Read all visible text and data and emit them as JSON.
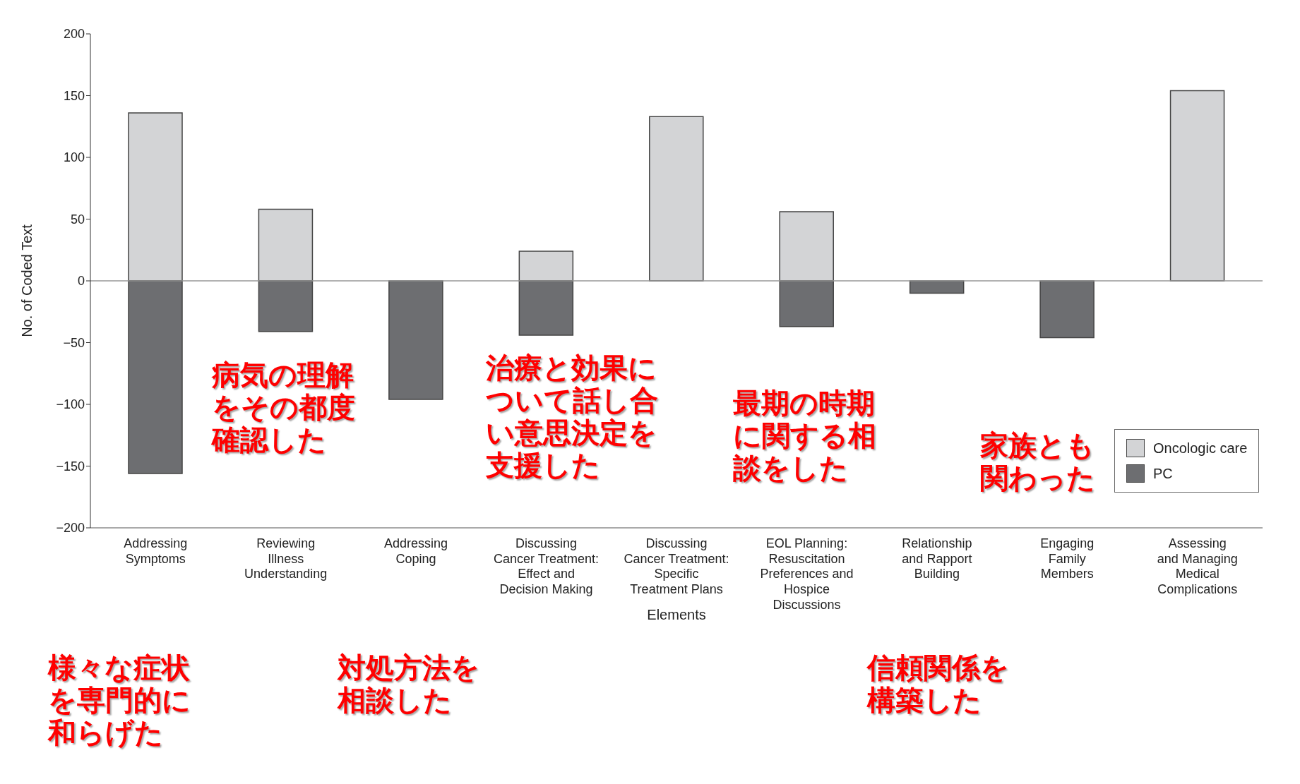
{
  "chart_data": {
    "type": "bar",
    "xlabel": "Elements",
    "ylabel": "No. of Coded Text",
    "categories": [
      "Addressing\nSymptoms",
      "Reviewing\nIllness\nUnderstanding",
      "Addressing\nCoping",
      "Discussing\nCancer Treatment:\nEffect and\nDecision Making",
      "Discussing\nCancer Treatment:\nSpecific\nTreatment Plans",
      "EOL Planning:\nResuscitation\nPreferences and\nHospice\nDiscussions",
      "Relationship\nand Rapport\nBuilding",
      "Engaging\nFamily\nMembers",
      "Assessing\nand Managing\nMedical\nComplications"
    ],
    "series": [
      {
        "name": "Oncologic care",
        "color": "#d3d4d6",
        "values": [
          136,
          58,
          null,
          24,
          133,
          56,
          null,
          null,
          154
        ]
      },
      {
        "name": "PC",
        "color": "#6d6e71",
        "values": [
          -156,
          -41,
          -96,
          -44,
          null,
          -37,
          -10,
          -46,
          null
        ]
      }
    ],
    "stacked": true,
    "ylim": [
      -200,
      200
    ],
    "yticks": [
      {
        "value": -200,
        "label": "−200"
      },
      {
        "value": -150,
        "label": "−150"
      },
      {
        "value": -100,
        "label": "−100"
      },
      {
        "value": -50,
        "label": "−50"
      },
      0,
      50,
      100,
      150,
      200
    ],
    "ref_lines": [
      {
        "axis": "y",
        "value": 0,
        "color": "#999999"
      }
    ],
    "legend": "bottom right",
    "annotations": [
      "様々な症状を専門的に和らげた",
      "病気の理解をその都度確認した",
      "対処方法を相談した",
      "治療と効果について話し合い意思決定を支援した",
      "最期の時期に関する相談をした",
      "信頼関係を構築した",
      "家族とも関わった"
    ]
  }
}
